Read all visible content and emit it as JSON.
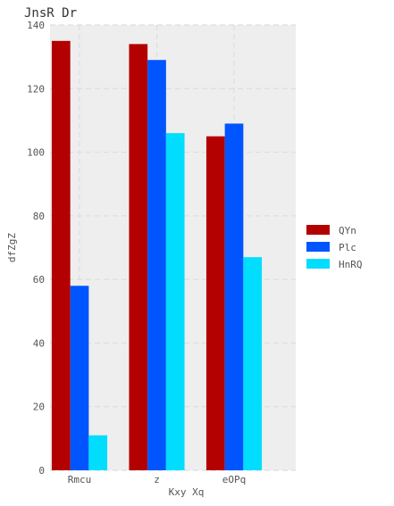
{
  "chart_data": {
    "type": "bar",
    "title": "JnsR Dr",
    "xlabel": "Kxy  Xq",
    "ylabel": "dfZgZ",
    "categories": [
      "Rmcu",
      "z",
      "eOPq"
    ],
    "series": [
      {
        "name": "QYn",
        "color": "#b30000",
        "values": [
          135,
          134,
          105
        ]
      },
      {
        "name": "Plc",
        "color": "#0055ff",
        "values": [
          58,
          129,
          109
        ]
      },
      {
        "name": "HnRQ",
        "color": "#00ddff",
        "values": [
          11,
          106,
          67
        ]
      }
    ],
    "ylim": [
      0,
      140
    ],
    "yticks": [
      0,
      20,
      40,
      60,
      80,
      100,
      120,
      140
    ],
    "grid": true,
    "legend_position": "right",
    "background": "#eeeeee",
    "grid_color": "#dddddd"
  }
}
